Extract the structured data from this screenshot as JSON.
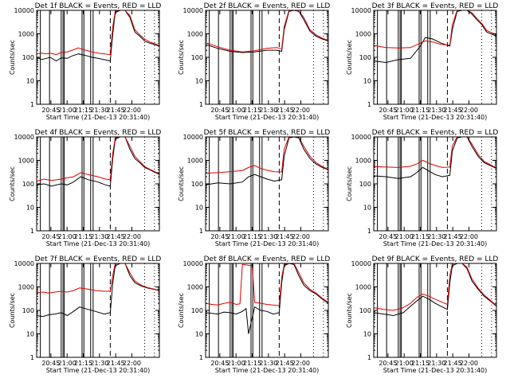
{
  "figure": {
    "xlabel": "Start Time (21-Dec-13 20:31:40)",
    "ylabel": "Counts/sec"
  },
  "chart_data": [
    {
      "type": "line",
      "title": "Det 1f BLACK = Events, RED = LLD",
      "x_ticks": [
        "20:45",
        "21:00",
        "21:15",
        "21:30",
        "21:45",
        "22:00"
      ],
      "y_ticks": [
        "1",
        "10",
        "100",
        "1000",
        "10000"
      ],
      "yscale": "log",
      "ylim": [
        1,
        10000
      ],
      "series": [
        {
          "color": "#000000",
          "x": [
            0,
            0.04,
            0.08,
            0.11,
            0.16,
            0.2,
            0.25,
            0.29,
            0.34,
            0.4,
            0.45,
            0.5,
            0.55,
            0.6,
            0.62,
            0.64,
            0.68,
            0.72,
            0.76,
            0.8,
            0.84,
            0.88,
            0.92,
            0.96,
            1
          ],
          "y": [
            100,
            80,
            90,
            100,
            70,
            95,
            90,
            115,
            140,
            120,
            100,
            90,
            80,
            70,
            1000,
            8000,
            10000,
            10000,
            5000,
            1200,
            800,
            500,
            400,
            350,
            300
          ]
        },
        {
          "color": "#e00000",
          "x": [
            0,
            0.04,
            0.08,
            0.11,
            0.16,
            0.2,
            0.25,
            0.29,
            0.34,
            0.4,
            0.45,
            0.5,
            0.55,
            0.6,
            0.62,
            0.64,
            0.68,
            0.72,
            0.76,
            0.8,
            0.84,
            0.88,
            0.92,
            0.96,
            1
          ],
          "y": [
            140,
            150,
            140,
            150,
            130,
            160,
            170,
            200,
            250,
            200,
            170,
            150,
            140,
            130,
            2000,
            9000,
            10000,
            10000,
            6000,
            1500,
            900,
            600,
            450,
            380,
            320
          ]
        }
      ]
    },
    {
      "type": "line",
      "title": "Det 2f BLACK = Events, RED = LLD",
      "x_ticks": [
        "20:45",
        "21:00",
        "21:15",
        "21:30",
        "21:45",
        "22:00"
      ],
      "y_ticks": [
        "1",
        "10",
        "100",
        "1000",
        "10000"
      ],
      "yscale": "log",
      "ylim": [
        1,
        10000
      ],
      "series": [
        {
          "color": "#000000",
          "x": [
            0,
            0.1,
            0.2,
            0.3,
            0.4,
            0.5,
            0.58,
            0.62,
            0.64,
            0.68,
            0.72,
            0.76,
            0.8,
            0.85,
            0.9,
            0.95,
            1
          ],
          "y": [
            350,
            240,
            180,
            160,
            170,
            200,
            200,
            180,
            1500,
            9000,
            10000,
            9000,
            4000,
            1300,
            800,
            600,
            500
          ]
        },
        {
          "color": "#e00000",
          "x": [
            0,
            0.1,
            0.2,
            0.3,
            0.4,
            0.5,
            0.58,
            0.62,
            0.64,
            0.68,
            0.72,
            0.76,
            0.8,
            0.85,
            0.9,
            0.95,
            1
          ],
          "y": [
            420,
            280,
            200,
            170,
            190,
            240,
            260,
            230,
            2000,
            10000,
            10000,
            9500,
            5000,
            1500,
            900,
            650,
            520
          ]
        }
      ]
    },
    {
      "type": "line",
      "title": "Det 3f BLACK = Events, RED = LLD",
      "x_ticks": [
        "20:45",
        "21:00",
        "21:15",
        "21:30",
        "21:45",
        "22:00"
      ],
      "y_ticks": [
        "1",
        "10",
        "100",
        "1000",
        "10000"
      ],
      "yscale": "log",
      "ylim": [
        1,
        10000
      ],
      "series": [
        {
          "color": "#000000",
          "x": [
            0,
            0.1,
            0.2,
            0.3,
            0.38,
            0.42,
            0.48,
            0.55,
            0.62,
            0.64,
            0.68,
            0.72,
            0.76,
            0.8,
            0.84,
            0.88,
            0.92,
            1
          ],
          "y": [
            70,
            60,
            80,
            90,
            300,
            700,
            600,
            400,
            300,
            1500,
            9000,
            10000,
            10000,
            7000,
            4000,
            2500,
            1200,
            800
          ]
        },
        {
          "color": "#e00000",
          "x": [
            0,
            0.1,
            0.2,
            0.3,
            0.38,
            0.42,
            0.48,
            0.55,
            0.62,
            0.64,
            0.68,
            0.72,
            0.76,
            0.8,
            0.84,
            0.88,
            0.92,
            1
          ],
          "y": [
            320,
            260,
            250,
            260,
            400,
            500,
            450,
            350,
            330,
            2500,
            10000,
            10000,
            10000,
            8000,
            4500,
            2800,
            1400,
            900
          ]
        }
      ]
    },
    {
      "type": "line",
      "title": "Det 4f BLACK = Events, RED = LLD",
      "x_ticks": [
        "20:45",
        "21:00",
        "21:15",
        "21:30",
        "21:45",
        "22:00"
      ],
      "y_ticks": [
        "1",
        "10",
        "100",
        "1000",
        "10000"
      ],
      "yscale": "log",
      "ylim": [
        1,
        10000
      ],
      "series": [
        {
          "color": "#000000",
          "x": [
            0,
            0.06,
            0.12,
            0.2,
            0.25,
            0.3,
            0.36,
            0.42,
            0.5,
            0.56,
            0.6,
            0.62,
            0.64,
            0.68,
            0.72,
            0.76,
            0.8,
            0.84,
            0.88,
            0.92,
            1
          ],
          "y": [
            90,
            100,
            80,
            100,
            90,
            120,
            200,
            150,
            120,
            90,
            80,
            1200,
            8000,
            10000,
            10000,
            3000,
            1200,
            800,
            500,
            400,
            250
          ]
        },
        {
          "color": "#e00000",
          "x": [
            0,
            0.06,
            0.12,
            0.2,
            0.25,
            0.3,
            0.36,
            0.42,
            0.5,
            0.56,
            0.6,
            0.62,
            0.64,
            0.68,
            0.72,
            0.76,
            0.8,
            0.84,
            0.88,
            0.92,
            1
          ],
          "y": [
            130,
            160,
            140,
            160,
            180,
            200,
            300,
            250,
            200,
            160,
            150,
            2000,
            9000,
            10000,
            10000,
            4000,
            1500,
            900,
            550,
            420,
            270
          ]
        }
      ]
    },
    {
      "type": "line",
      "title": "Det 5f BLACK = Events, RED = LLD",
      "x_ticks": [
        "20:45",
        "21:00",
        "21:15",
        "21:30",
        "21:45",
        "22:00"
      ],
      "y_ticks": [
        "1",
        "10",
        "100",
        "1000",
        "10000"
      ],
      "yscale": "log",
      "ylim": [
        1,
        10000
      ],
      "series": [
        {
          "color": "#000000",
          "x": [
            0,
            0.1,
            0.2,
            0.3,
            0.35,
            0.4,
            0.45,
            0.5,
            0.56,
            0.62,
            0.64,
            0.68,
            0.72,
            0.76,
            0.8,
            0.85,
            0.9,
            0.95,
            1
          ],
          "y": [
            90,
            110,
            100,
            120,
            200,
            250,
            200,
            160,
            130,
            150,
            1500,
            9000,
            10000,
            9000,
            3000,
            1200,
            700,
            500,
            400
          ]
        },
        {
          "color": "#e00000",
          "x": [
            0,
            0.1,
            0.2,
            0.3,
            0.35,
            0.4,
            0.45,
            0.5,
            0.56,
            0.62,
            0.64,
            0.68,
            0.72,
            0.76,
            0.8,
            0.85,
            0.9,
            0.95,
            1
          ],
          "y": [
            280,
            300,
            330,
            370,
            500,
            600,
            450,
            380,
            330,
            320,
            3000,
            10000,
            10000,
            10000,
            4000,
            1500,
            800,
            550,
            420
          ]
        }
      ]
    },
    {
      "type": "line",
      "title": "Det 6f BLACK = Events, RED = LLD",
      "x_ticks": [
        "20:45",
        "21:00",
        "21:15",
        "21:30",
        "21:45",
        "22:00"
      ],
      "y_ticks": [
        "1",
        "10",
        "100",
        "1000",
        "10000"
      ],
      "yscale": "log",
      "ylim": [
        1,
        10000
      ],
      "series": [
        {
          "color": "#000000",
          "x": [
            0,
            0.1,
            0.2,
            0.3,
            0.35,
            0.4,
            0.45,
            0.5,
            0.56,
            0.62,
            0.64,
            0.68,
            0.72,
            0.76,
            0.8,
            0.85,
            0.9,
            0.95,
            1
          ],
          "y": [
            220,
            200,
            170,
            200,
            300,
            500,
            350,
            250,
            200,
            230,
            2500,
            9000,
            10000,
            10000,
            4000,
            1500,
            800,
            600,
            450
          ]
        },
        {
          "color": "#e00000",
          "x": [
            0,
            0.1,
            0.2,
            0.3,
            0.35,
            0.4,
            0.45,
            0.5,
            0.56,
            0.62,
            0.64,
            0.68,
            0.72,
            0.76,
            0.8,
            0.85,
            0.9,
            0.95,
            1
          ],
          "y": [
            550,
            520,
            500,
            560,
            700,
            1000,
            750,
            600,
            500,
            520,
            4000,
            10000,
            10000,
            10000,
            5000,
            1800,
            900,
            650,
            480
          ]
        }
      ]
    },
    {
      "type": "line",
      "title": "Det 7f BLACK = Events, RED = LLD",
      "x_ticks": [
        "20:45",
        "21:00",
        "21:15",
        "21:30",
        "21:45",
        "22:00"
      ],
      "y_ticks": [
        "1",
        "10",
        "100",
        "1000",
        "10000"
      ],
      "yscale": "log",
      "ylim": [
        1,
        10000
      ],
      "series": [
        {
          "color": "#000000",
          "x": [
            0,
            0.05,
            0.1,
            0.15,
            0.2,
            0.25,
            0.3,
            0.35,
            0.42,
            0.48,
            0.55,
            0.6,
            0.62,
            0.64,
            0.68,
            0.72,
            0.76,
            0.8,
            0.85,
            0.9,
            0.95,
            1
          ],
          "y": [
            60,
            55,
            65,
            70,
            80,
            60,
            90,
            140,
            110,
            90,
            70,
            80,
            1500,
            8000,
            10000,
            10000,
            3000,
            1500,
            1100,
            900,
            800,
            700
          ]
        },
        {
          "color": "#e00000",
          "x": [
            0,
            0.05,
            0.1,
            0.15,
            0.2,
            0.25,
            0.3,
            0.35,
            0.42,
            0.48,
            0.55,
            0.6,
            0.62,
            0.64,
            0.68,
            0.72,
            0.76,
            0.8,
            0.85,
            0.9,
            0.95,
            1
          ],
          "y": [
            550,
            600,
            550,
            600,
            650,
            600,
            700,
            900,
            800,
            700,
            650,
            650,
            3000,
            10000,
            10000,
            10000,
            4000,
            1800,
            1200,
            950,
            820,
            720
          ]
        }
      ]
    },
    {
      "type": "line",
      "title": "Det 8f BLACK = Events, RED = LLD",
      "x_ticks": [
        "20:45",
        "21:00",
        "21:15",
        "21:30",
        "21:45",
        "22:00"
      ],
      "y_ticks": [
        "1",
        "10",
        "100",
        "1000",
        "10000"
      ],
      "yscale": "log",
      "ylim": [
        1,
        10000
      ],
      "series": [
        {
          "color": "#000000",
          "x": [
            0,
            0.05,
            0.1,
            0.15,
            0.2,
            0.25,
            0.3,
            0.33,
            0.35,
            0.4,
            0.45,
            0.5,
            0.55,
            0.6,
            0.62,
            0.64,
            0.68,
            0.72,
            0.76,
            0.8,
            0.85,
            0.9,
            0.95,
            1
          ],
          "y": [
            80,
            75,
            70,
            85,
            80,
            70,
            90,
            120,
            10,
            140,
            100,
            90,
            70,
            80,
            1500,
            8000,
            10000,
            9000,
            3000,
            1200,
            700,
            500,
            300,
            200
          ]
        },
        {
          "color": "#e00000",
          "x": [
            0,
            0.05,
            0.1,
            0.15,
            0.2,
            0.25,
            0.28,
            0.3,
            0.38,
            0.4,
            0.45,
            0.5,
            0.55,
            0.6,
            0.62,
            0.64,
            0.68,
            0.72,
            0.76,
            0.8,
            0.85,
            0.9,
            0.95,
            1
          ],
          "y": [
            200,
            180,
            170,
            200,
            220,
            180,
            190,
            9000,
            8000,
            220,
            200,
            180,
            170,
            160,
            2500,
            9000,
            10000,
            10000,
            4000,
            1500,
            800,
            550,
            330,
            220
          ]
        }
      ]
    },
    {
      "type": "line",
      "title": "Det 9f BLACK = Events, RED = LLD",
      "x_ticks": [
        "20:45",
        "21:00",
        "21:15",
        "21:30",
        "21:45",
        "22:00"
      ],
      "y_ticks": [
        "1",
        "10",
        "100",
        "1000",
        "10000"
      ],
      "yscale": "log",
      "ylim": [
        1,
        10000
      ],
      "series": [
        {
          "color": "#000000",
          "x": [
            0,
            0.08,
            0.16,
            0.24,
            0.3,
            0.35,
            0.4,
            0.45,
            0.5,
            0.56,
            0.6,
            0.62,
            0.64,
            0.68,
            0.72,
            0.76,
            0.8,
            0.85,
            0.9,
            0.95,
            1
          ],
          "y": [
            80,
            70,
            60,
            80,
            150,
            250,
            400,
            300,
            200,
            140,
            110,
            1500,
            8000,
            10000,
            10000,
            6000,
            1800,
            800,
            400,
            250,
            150
          ]
        },
        {
          "color": "#e00000",
          "x": [
            0,
            0.08,
            0.16,
            0.24,
            0.3,
            0.35,
            0.4,
            0.45,
            0.5,
            0.56,
            0.6,
            0.62,
            0.64,
            0.68,
            0.72,
            0.76,
            0.8,
            0.85,
            0.9,
            0.95,
            1
          ],
          "y": [
            130,
            110,
            100,
            130,
            200,
            350,
            500,
            400,
            300,
            220,
            180,
            3000,
            10000,
            10000,
            10000,
            7000,
            2200,
            900,
            450,
            270,
            160
          ]
        }
      ]
    }
  ]
}
